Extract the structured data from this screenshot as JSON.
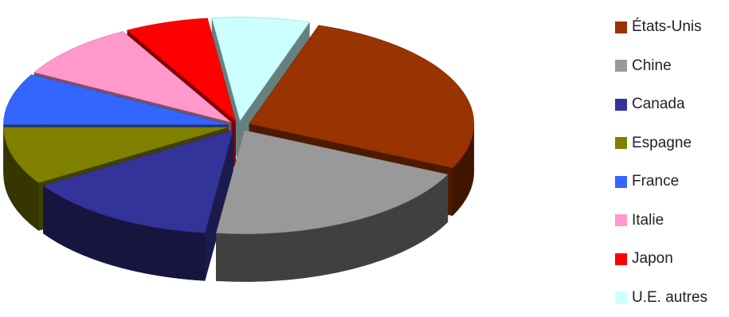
{
  "chart_data": {
    "type": "pie",
    "three_d": true,
    "exploded": true,
    "legend_position": "right",
    "slices": [
      {
        "label": "États-Unis",
        "value": 27,
        "color": "#993300"
      },
      {
        "label": "Chine",
        "value": 20,
        "color": "#999999"
      },
      {
        "label": "Canada",
        "value": 14,
        "color": "#333399"
      },
      {
        "label": "Espagne",
        "value": 9,
        "color": "#808000"
      },
      {
        "label": "France",
        "value": 8,
        "color": "#3366FF"
      },
      {
        "label": "Italie",
        "value": 9,
        "color": "#FF99CC"
      },
      {
        "label": "Japon",
        "value": 6,
        "color": "#FF0000"
      },
      {
        "label": "U.E. autres",
        "value": 7,
        "color": "#CCFFFF"
      }
    ]
  }
}
